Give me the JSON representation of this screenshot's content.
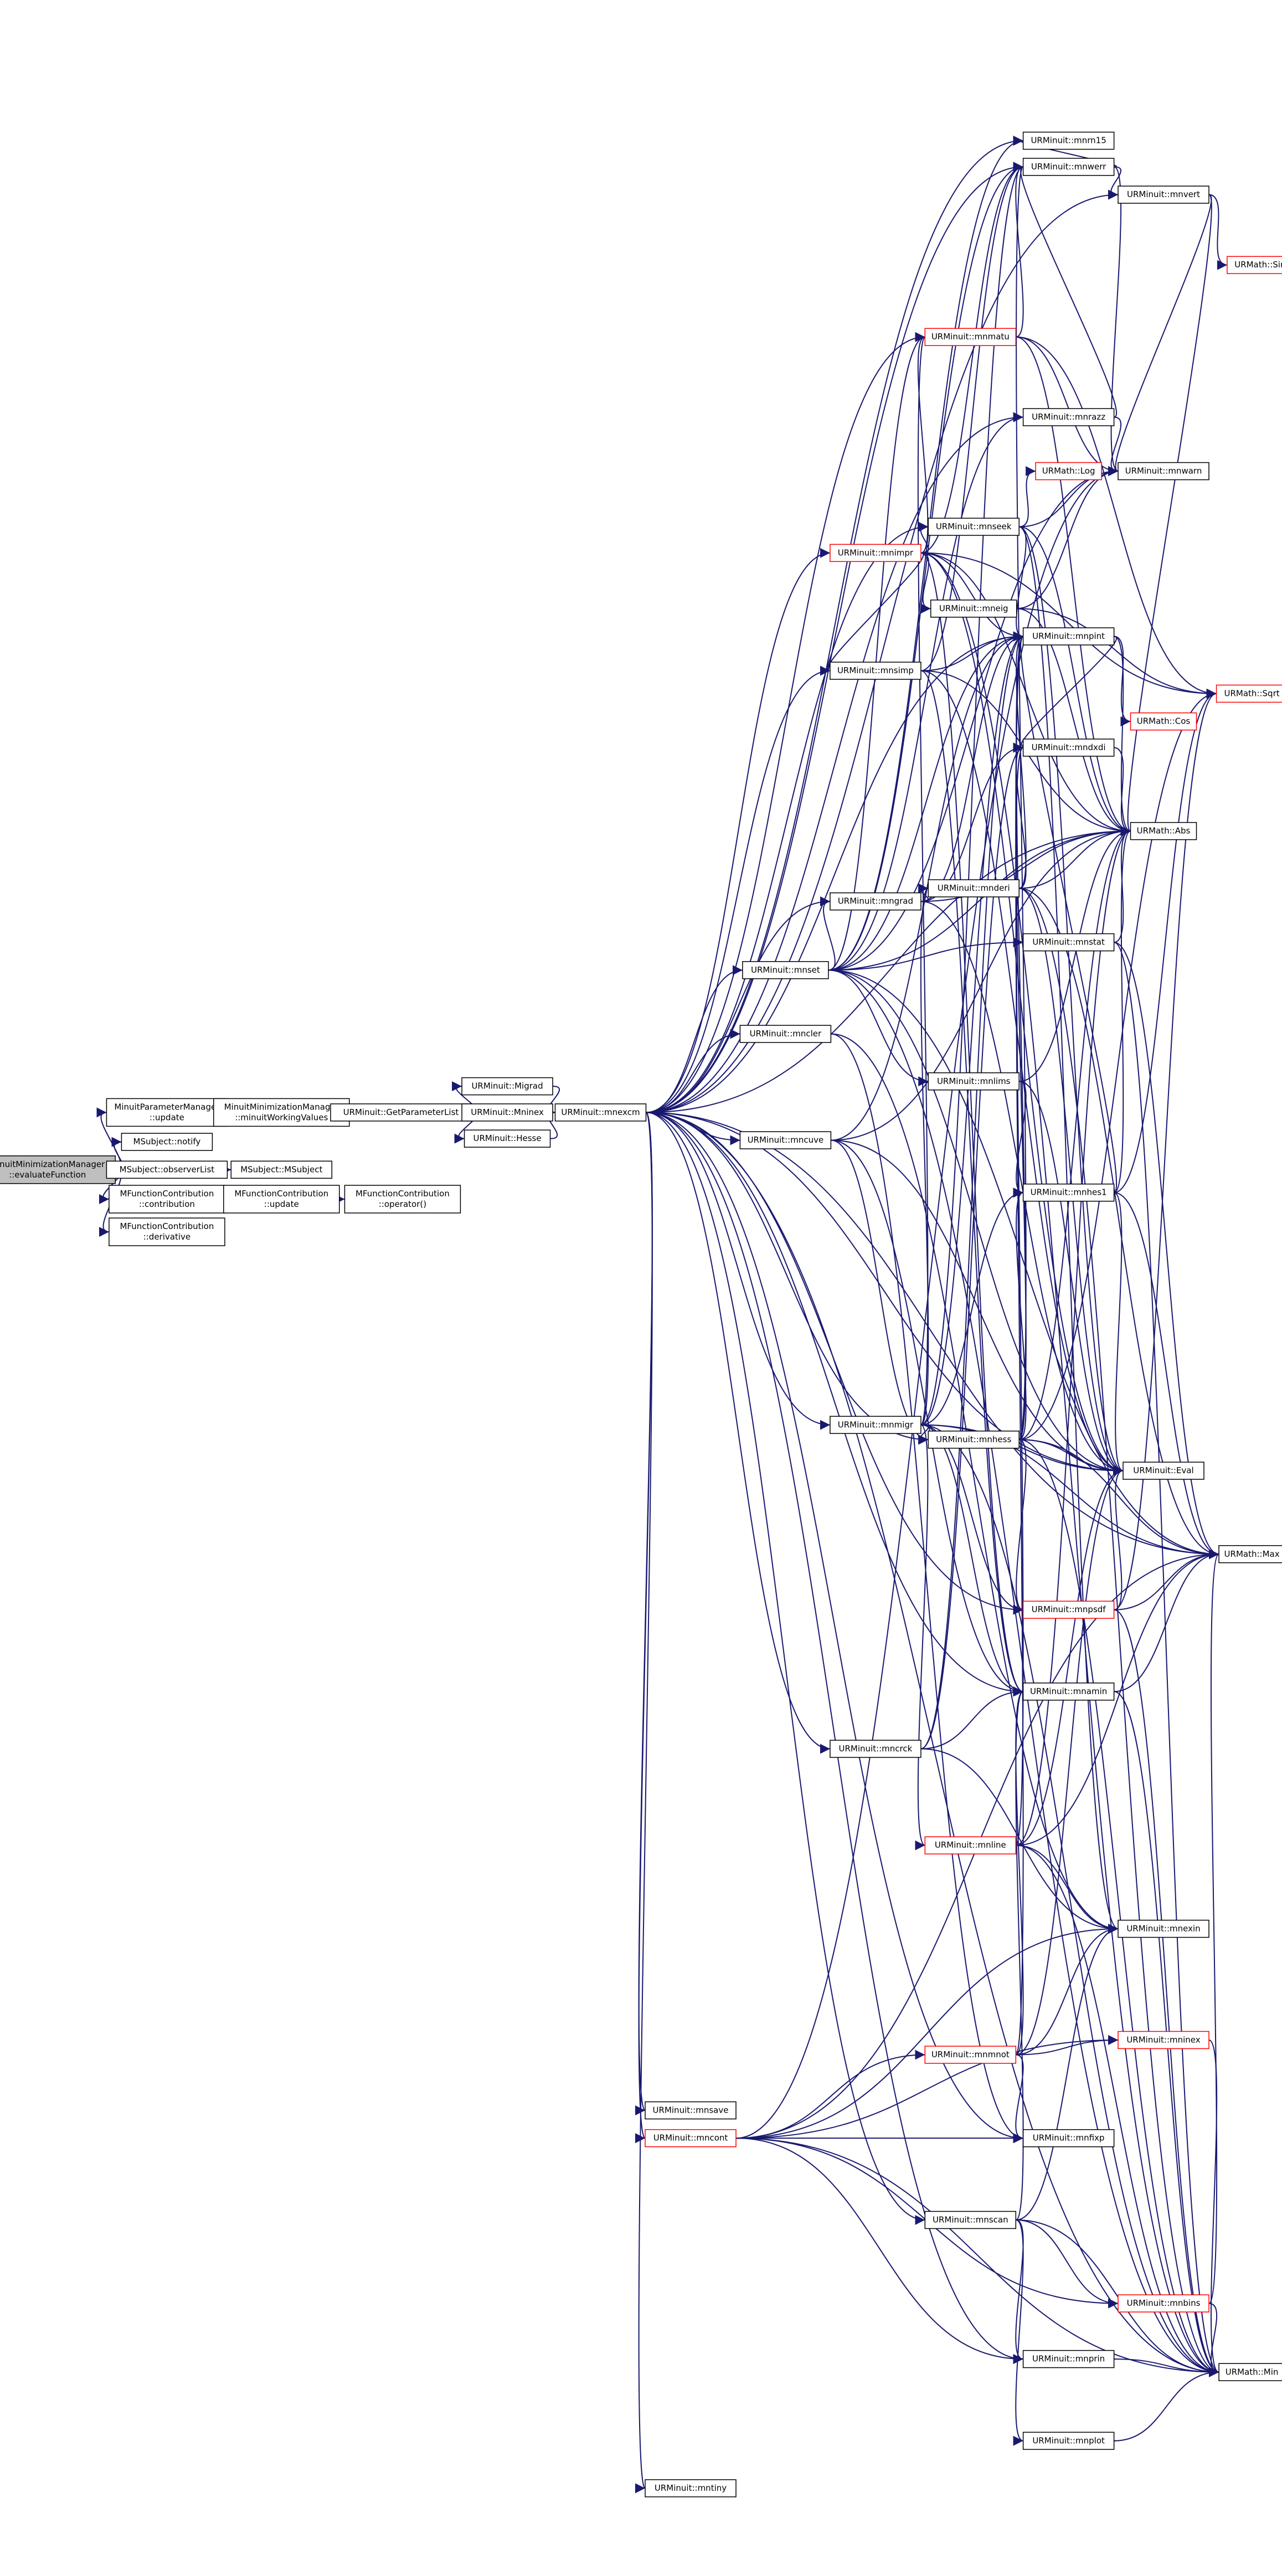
{
  "nodes": [
    {
      "lines": [
        "MinuitMinimizationManager",
        "::evaluateFunction"
      ],
      "fill": "#bfbfbf"
    },
    {
      "lines": [
        "MinuitParameterManager",
        "::update"
      ]
    },
    {
      "lines": [
        "MSubject::notify"
      ]
    },
    {
      "lines": [
        "MSubject::observerList"
      ]
    },
    {
      "lines": [
        "MFunctionContribution",
        "::contribution"
      ]
    },
    {
      "lines": [
        "MFunctionContribution",
        "::derivative"
      ]
    },
    {
      "lines": [
        "MinuitMinimizationManager",
        "::minuitWorkingValues"
      ]
    },
    {
      "lines": [
        "MSubject::MSubject"
      ]
    },
    {
      "lines": [
        "MFunctionContribution",
        "::update"
      ]
    },
    {
      "lines": [
        "MFunctionContribution",
        "::operator()"
      ]
    },
    {
      "lines": [
        "URMinuit::GetParameterList"
      ]
    },
    {
      "lines": [
        "URMinuit::Migrad"
      ]
    },
    {
      "lines": [
        "URMinuit::Mninex"
      ]
    },
    {
      "lines": [
        "URMinuit::Hesse"
      ]
    },
    {
      "lines": [
        "URMinuit::mnexcm"
      ]
    },
    {
      "lines": [
        "URMinuit::mnrn15"
      ]
    },
    {
      "lines": [
        "URMinuit::mnwerr"
      ]
    },
    {
      "lines": [
        "URMinuit::mnvert"
      ]
    },
    {
      "lines": [
        "URMath::Sin"
      ],
      "border": "#ff0000"
    },
    {
      "lines": [
        "URMinuit::mnmatu"
      ],
      "border": "#ff0000"
    },
    {
      "lines": [
        "URMinuit::mnrazz"
      ]
    },
    {
      "lines": [
        "URMinuit::mnwarn"
      ]
    },
    {
      "lines": [
        "URMath::Log"
      ],
      "border": "#ff0000"
    },
    {
      "lines": [
        "URMinuit::mnseek"
      ]
    },
    {
      "lines": [
        "URMinuit::mnimpr"
      ],
      "border": "#ff0000"
    },
    {
      "lines": [
        "URMinuit::mneig"
      ]
    },
    {
      "lines": [
        "URMinuit::mnpint"
      ]
    },
    {
      "lines": [
        "URMinuit::mnsimp"
      ]
    },
    {
      "lines": [
        "URMath::Sqrt"
      ],
      "border": "#ff0000"
    },
    {
      "lines": [
        "URMath::Cos"
      ],
      "border": "#ff0000"
    },
    {
      "lines": [
        "URMinuit::mndxdi"
      ]
    },
    {
      "lines": [
        "URMath::Abs"
      ]
    },
    {
      "lines": [
        "URMinuit::mnderi"
      ]
    },
    {
      "lines": [
        "URMinuit::mngrad"
      ]
    },
    {
      "lines": [
        "URMinuit::mnstat"
      ]
    },
    {
      "lines": [
        "URMinuit::mnset"
      ]
    },
    {
      "lines": [
        "URMinuit::mncler"
      ]
    },
    {
      "lines": [
        "URMinuit::mnlims"
      ]
    },
    {
      "lines": [
        "URMinuit::mncuve"
      ]
    },
    {
      "lines": [
        "URMinuit::mnhes1"
      ]
    },
    {
      "lines": [
        "URMinuit::mnmigr"
      ]
    },
    {
      "lines": [
        "URMinuit::mnhess"
      ]
    },
    {
      "lines": [
        "URMinuit::Eval"
      ]
    },
    {
      "lines": [
        "URMath::Max"
      ]
    },
    {
      "lines": [
        "URMinuit::mnpsdf"
      ],
      "border": "#ff0000"
    },
    {
      "lines": [
        "URMinuit::mnamin"
      ]
    },
    {
      "lines": [
        "URMinuit::mncrck"
      ]
    },
    {
      "lines": [
        "URMinuit::mnline"
      ],
      "border": "#ff0000"
    },
    {
      "lines": [
        "URMinuit::mnexin"
      ]
    },
    {
      "lines": [
        "URMinuit::mninex"
      ],
      "border": "#ff0000"
    },
    {
      "lines": [
        "URMinuit::mnmnot"
      ],
      "border": "#ff0000"
    },
    {
      "lines": [
        "URMinuit::mnsave"
      ]
    },
    {
      "lines": [
        "URMinuit::mncont"
      ],
      "border": "#ff0000"
    },
    {
      "lines": [
        "URMinuit::mnfixp"
      ]
    },
    {
      "lines": [
        "URMinuit::mnscan"
      ]
    },
    {
      "lines": [
        "URMinuit::mnbins"
      ],
      "border": "#ff0000"
    },
    {
      "lines": [
        "URMinuit::mnprin"
      ]
    },
    {
      "lines": [
        "URMath::Min"
      ]
    },
    {
      "lines": [
        "URMinuit::mnplot"
      ]
    },
    {
      "lines": [
        "URMinuit::mntiny"
      ]
    }
  ]
}
